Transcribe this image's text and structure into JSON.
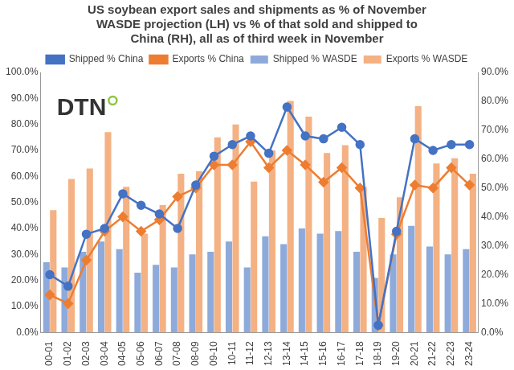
{
  "chart_data": {
    "type": "bar",
    "title": [
      "US soybean export sales and shipments as % of November",
      "WASDE projection (LH) vs % of that sold and shipped to",
      "China (RH), all as of third week in November"
    ],
    "annotations": [
      {
        "text": "DTN"
      }
    ],
    "categories": [
      "00-01",
      "01-02",
      "02-03",
      "03-04",
      "04-05",
      "05-06",
      "06-07",
      "07-08",
      "08-09",
      "09-10",
      "10-11",
      "11-12",
      "12-13",
      "13-14",
      "14-15",
      "15-16",
      "16-17",
      "17-18",
      "18-19",
      "19-20",
      "20-21",
      "21-22",
      "22-23",
      "23-24"
    ],
    "series": [
      {
        "name": "Shipped % WASDE",
        "type": "bar",
        "color": "#8eaadb",
        "axis": "y",
        "values": [
          27,
          25,
          31,
          35,
          32,
          23,
          26,
          25,
          30,
          31,
          35,
          25,
          37,
          34,
          40,
          38,
          39,
          31,
          21,
          30,
          41,
          33,
          30,
          32
        ]
      },
      {
        "name": "Exports % WASDE",
        "type": "bar",
        "color": "#f4b183",
        "axis": "y",
        "values": [
          47,
          59,
          63,
          77,
          56,
          38,
          49,
          61,
          62,
          75,
          80,
          58,
          70,
          89,
          83,
          69,
          72,
          56,
          44,
          52,
          87,
          65,
          67,
          61
        ]
      },
      {
        "name": "Shipped % China",
        "type": "line",
        "color": "#4472c4",
        "axis": "y2",
        "marker": "circle",
        "values": [
          20,
          16,
          34,
          36,
          48,
          44,
          41,
          36,
          51,
          61,
          65,
          68,
          62,
          78,
          68,
          67,
          71,
          65,
          2.5,
          35,
          67,
          63,
          65,
          65
        ]
      },
      {
        "name": "Exports % China",
        "type": "line",
        "color": "#ed7d31",
        "axis": "y2",
        "marker": "diamond",
        "values": [
          13,
          10,
          25,
          35,
          40,
          35,
          39,
          47,
          50,
          58,
          58,
          66,
          57,
          63,
          58,
          52,
          57,
          50,
          2.5,
          34,
          51,
          50,
          57,
          51
        ]
      }
    ],
    "ylim": [
      0,
      100
    ],
    "yticks": [
      {
        "value": 0,
        "label": "0.0%"
      },
      {
        "value": 10,
        "label": "10.0%"
      },
      {
        "value": 20,
        "label": "20.0%"
      },
      {
        "value": 30,
        "label": "30.0%"
      },
      {
        "value": 40,
        "label": "40.0%"
      },
      {
        "value": 50,
        "label": "50.0%"
      },
      {
        "value": 60,
        "label": "60.0%"
      },
      {
        "value": 70,
        "label": "70.0%"
      },
      {
        "value": 80,
        "label": "80.0%"
      },
      {
        "value": 90,
        "label": "90.0%"
      },
      {
        "value": 100,
        "label": "100.0%"
      }
    ],
    "y2lim": [
      0,
      90
    ],
    "y2ticks": [
      {
        "value": 0,
        "label": "0.0%"
      },
      {
        "value": 10,
        "label": "10.0%"
      },
      {
        "value": 20,
        "label": "20.0%"
      },
      {
        "value": 30,
        "label": "30.0%"
      },
      {
        "value": 40,
        "label": "40.0%"
      },
      {
        "value": 50,
        "label": "50.0%"
      },
      {
        "value": 60,
        "label": "60.0%"
      },
      {
        "value": 70,
        "label": "70.0%"
      },
      {
        "value": 80,
        "label": "80.0%"
      },
      {
        "value": 90,
        "label": "90.0%"
      }
    ],
    "grid": false,
    "legend": "top"
  }
}
